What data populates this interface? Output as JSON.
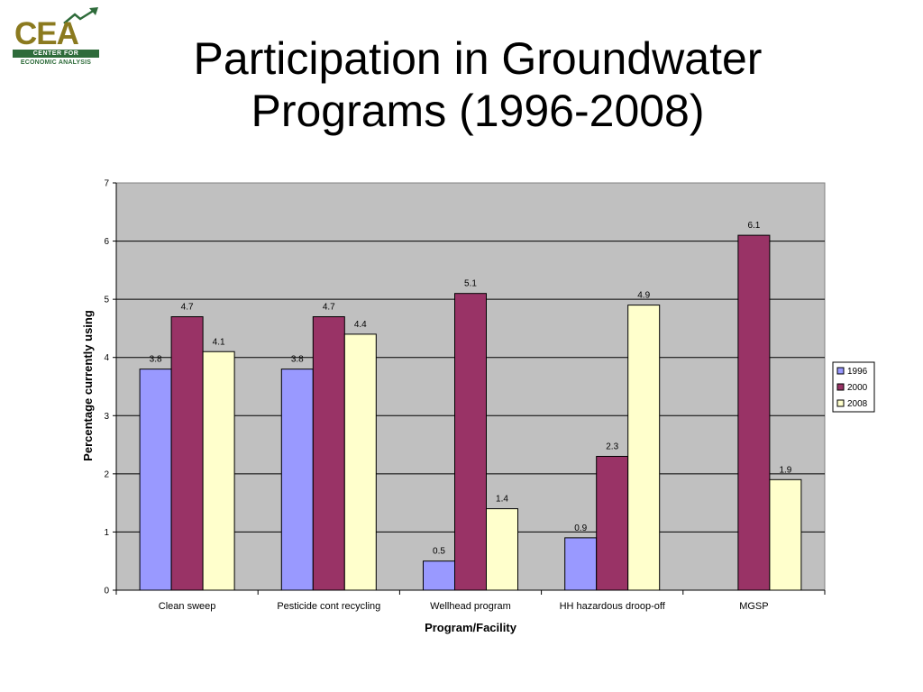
{
  "logo": {
    "letters": "CEA",
    "band": "CENTER FOR",
    "sub": "ECONOMIC ANALYSIS"
  },
  "title_line1": "Participation in Groundwater",
  "title_line2": "Programs (1996-2008)",
  "chart_data": {
    "type": "bar",
    "xlabel": "Program/Facility",
    "ylabel": "Percentage currently using",
    "ylim": [
      0,
      7
    ],
    "yticks": [
      0,
      1,
      2,
      3,
      4,
      5,
      6,
      7
    ],
    "grid": true,
    "legend_position": "right",
    "categories": [
      "Clean sweep",
      "Pesticide cont recycling",
      "Wellhead program",
      "HH hazardous droop-off",
      "MGSP"
    ],
    "series": [
      {
        "name": "1996",
        "color": "#9999ff",
        "values": [
          3.8,
          3.8,
          0.5,
          0.9,
          null
        ]
      },
      {
        "name": "2000",
        "color": "#993366",
        "values": [
          4.7,
          4.7,
          5.1,
          2.3,
          6.1
        ]
      },
      {
        "name": "2008",
        "color": "#ffffcc",
        "values": [
          4.1,
          4.4,
          1.4,
          4.9,
          1.9
        ]
      }
    ],
    "plot_background": "#c0c0c0"
  }
}
